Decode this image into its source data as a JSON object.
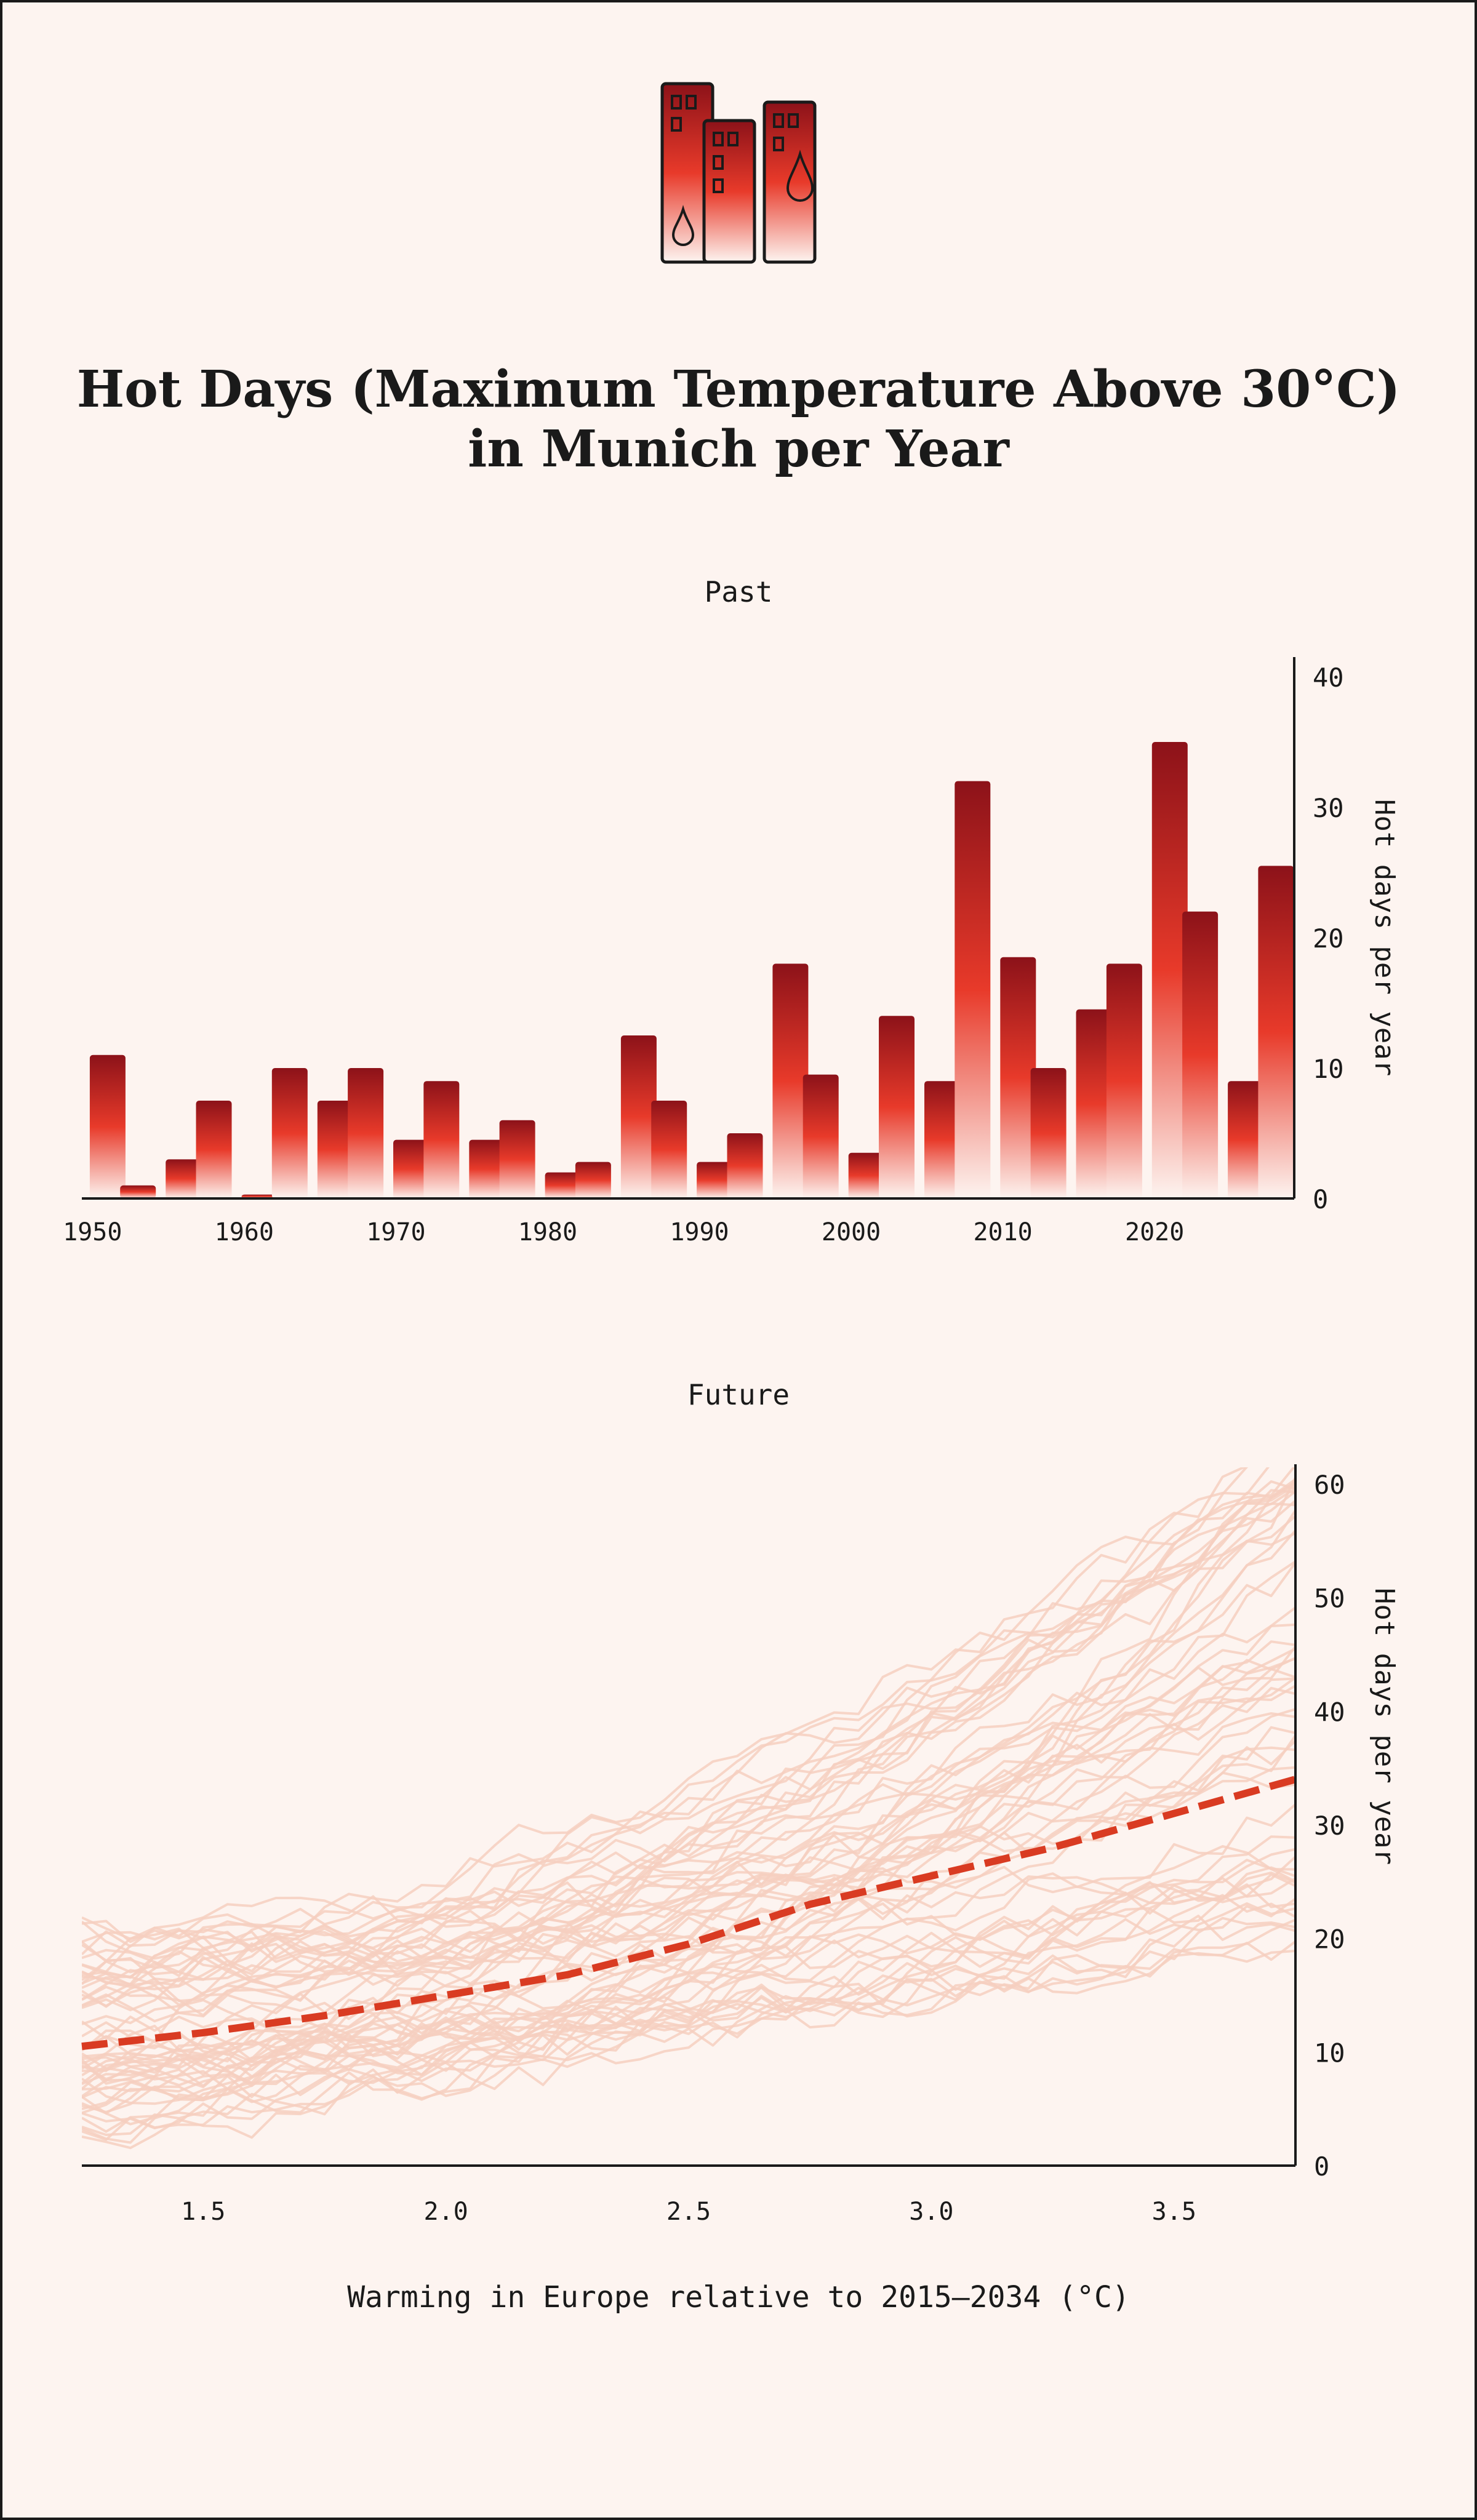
{
  "title_lines": [
    "Hot Days (Maximum Temperature Above 30°C)",
    "in Munich per Year"
  ],
  "icon": "city-buildings-heat-droplet-icon",
  "colors": {
    "background": "#fdf4f0",
    "bar_top": "#8c1219",
    "bar_mid": "#e83a2a",
    "bar_bottom": "#fdf4f0",
    "ensemble_line": "#f6cfc0",
    "median_line": "#d93b22",
    "axis": "#1a1a1a"
  },
  "chart_data": [
    {
      "type": "bar",
      "title": "Past",
      "xlabel": "",
      "ylabel": "Hot days per year",
      "ylim": [
        0,
        40
      ],
      "y_ticks": [
        "0",
        "10",
        "20",
        "30",
        "40"
      ],
      "x_tick_labels": [
        "1950",
        "1960",
        "1970",
        "1980",
        "1990",
        "2000",
        "2010",
        "2020"
      ],
      "x_tick_years": [
        1950,
        1960,
        1970,
        1980,
        1990,
        2000,
        2010,
        2020
      ],
      "categories": [
        1951,
        1953,
        1956,
        1958,
        1961,
        1963,
        1966,
        1968,
        1971,
        1973,
        1976,
        1978,
        1981,
        1983,
        1986,
        1988,
        1991,
        1993,
        1996,
        1998,
        2001,
        2003,
        2006,
        2008,
        2011,
        2013,
        2016,
        2018,
        2021,
        2023,
        2026,
        2028
      ],
      "values": [
        11,
        1,
        3,
        7.5,
        0.3,
        10,
        7.5,
        10,
        4.5,
        9,
        4.5,
        6,
        2,
        2.8,
        12.5,
        7.5,
        2.8,
        5,
        18,
        9.5,
        3.5,
        14,
        9,
        32,
        18.5,
        10,
        14.5,
        18,
        35,
        22,
        9,
        25.5
      ],
      "legend": "none"
    },
    {
      "type": "line",
      "title": "Future",
      "xlabel": "Warming in Europe relative to 2015–2034 (°C)",
      "ylabel": "Hot days per year",
      "xlim": [
        1.25,
        3.75
      ],
      "ylim": [
        0,
        60
      ],
      "x_ticks": [
        "1.5",
        "2.0",
        "2.5",
        "3.0",
        "3.5"
      ],
      "x_tick_values": [
        1.5,
        2.0,
        2.5,
        3.0,
        3.5
      ],
      "y_ticks": [
        "0",
        "10",
        "20",
        "30",
        "40",
        "50",
        "60"
      ],
      "series": [
        {
          "name": "Median",
          "style": "dashed",
          "x": [
            1.25,
            1.5,
            1.75,
            2.0,
            2.25,
            2.5,
            2.75,
            3.0,
            3.25,
            3.5,
            3.75
          ],
          "values": [
            10.5,
            11.7,
            13.2,
            15,
            16.8,
            19.5,
            23,
            25.5,
            28,
            31,
            34
          ]
        }
      ],
      "ensemble": {
        "name": "Model ensemble members",
        "count": 60,
        "start_range": [
          3,
          21
        ],
        "end_range": [
          18,
          65
        ]
      },
      "legend": "none"
    }
  ]
}
